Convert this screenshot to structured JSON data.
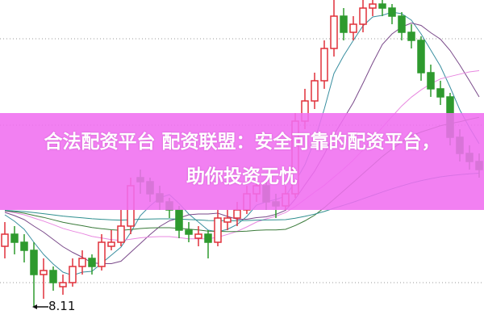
{
  "title_line1": "合法配资平台 配资联盟：安全可靠的配资平台，",
  "title_line2": "助你投资无忧",
  "colors": {
    "up": "#e0303a",
    "down": "#2e9a2e",
    "band": "#f06ef0",
    "grid": "#999999"
  },
  "chart_data": {
    "type": "candlestick",
    "min_label": "8.11",
    "ohlc": [
      [
        8.86,
        9.16,
        8.71,
        9.01
      ],
      [
        9.01,
        9.11,
        8.76,
        8.91
      ],
      [
        8.91,
        9.01,
        8.66,
        8.81
      ],
      [
        8.81,
        8.91,
        8.11,
        8.51
      ],
      [
        8.51,
        8.71,
        8.21,
        8.56
      ],
      [
        8.56,
        8.61,
        8.31,
        8.41
      ],
      [
        8.36,
        8.51,
        8.26,
        8.41
      ],
      [
        8.41,
        8.71,
        8.36,
        8.61
      ],
      [
        8.61,
        8.81,
        8.51,
        8.71
      ],
      [
        8.71,
        8.76,
        8.51,
        8.61
      ],
      [
        8.61,
        9.01,
        8.56,
        8.91
      ],
      [
        8.86,
        9.06,
        8.81,
        8.91
      ],
      [
        8.91,
        9.31,
        8.86,
        9.11
      ],
      [
        9.11,
        9.71,
        9.01,
        9.61
      ],
      [
        9.71,
        9.81,
        9.51,
        9.66
      ],
      [
        9.66,
        9.71,
        9.41,
        9.51
      ],
      [
        9.51,
        9.61,
        9.31,
        9.41
      ],
      [
        9.41,
        9.46,
        9.21,
        9.31
      ],
      [
        9.31,
        9.36,
        8.96,
        9.06
      ],
      [
        9.06,
        9.16,
        8.91,
        9.01
      ],
      [
        8.96,
        9.11,
        8.86,
        9.01
      ],
      [
        9.01,
        9.06,
        8.71,
        8.91
      ],
      [
        8.91,
        9.31,
        8.86,
        9.21
      ],
      [
        9.16,
        9.31,
        9.06,
        9.21
      ],
      [
        9.21,
        9.41,
        9.11,
        9.31
      ],
      [
        9.31,
        9.61,
        9.26,
        9.51
      ],
      [
        9.51,
        9.71,
        9.41,
        9.61
      ],
      [
        9.61,
        9.66,
        9.31,
        9.41
      ],
      [
        9.41,
        9.51,
        9.21,
        9.36
      ],
      [
        9.36,
        9.61,
        9.31,
        9.51
      ],
      [
        9.51,
        10.51,
        9.46,
        10.41
      ],
      [
        10.41,
        10.81,
        10.31,
        10.66
      ],
      [
        10.66,
        11.01,
        10.56,
        10.91
      ],
      [
        10.91,
        11.41,
        10.81,
        11.31
      ],
      [
        11.31,
        11.91,
        11.21,
        11.71
      ],
      [
        11.71,
        11.81,
        11.41,
        11.51
      ],
      [
        11.51,
        11.71,
        11.41,
        11.61
      ],
      [
        11.61,
        11.91,
        11.51,
        11.81
      ],
      [
        11.81,
        11.96,
        11.71,
        11.86
      ],
      [
        11.86,
        11.91,
        11.71,
        11.81
      ],
      [
        11.81,
        11.86,
        11.61,
        11.71
      ],
      [
        11.71,
        11.76,
        11.41,
        11.51
      ],
      [
        11.51,
        11.61,
        11.31,
        11.41
      ],
      [
        11.41,
        11.46,
        10.91,
        11.01
      ],
      [
        11.01,
        11.11,
        10.71,
        10.81
      ],
      [
        10.81,
        10.91,
        10.61,
        10.71
      ],
      [
        10.71,
        10.76,
        10.11,
        10.21
      ],
      [
        10.21,
        10.31,
        9.91,
        10.01
      ],
      [
        10.01,
        10.11,
        9.81,
        9.91
      ],
      [
        9.91,
        10.01,
        9.71,
        9.81
      ]
    ],
    "moving_averages": [
      {
        "period": 5,
        "color": "#3a8fa0"
      },
      {
        "period": 10,
        "color": "#7a4a8a"
      },
      {
        "period": 20,
        "color": "#e888e0"
      },
      {
        "period": 30,
        "color": "#3a7a3a"
      },
      {
        "period": 60,
        "color": "#2f8f8f"
      }
    ],
    "grid": "dotted-horizontal"
  }
}
